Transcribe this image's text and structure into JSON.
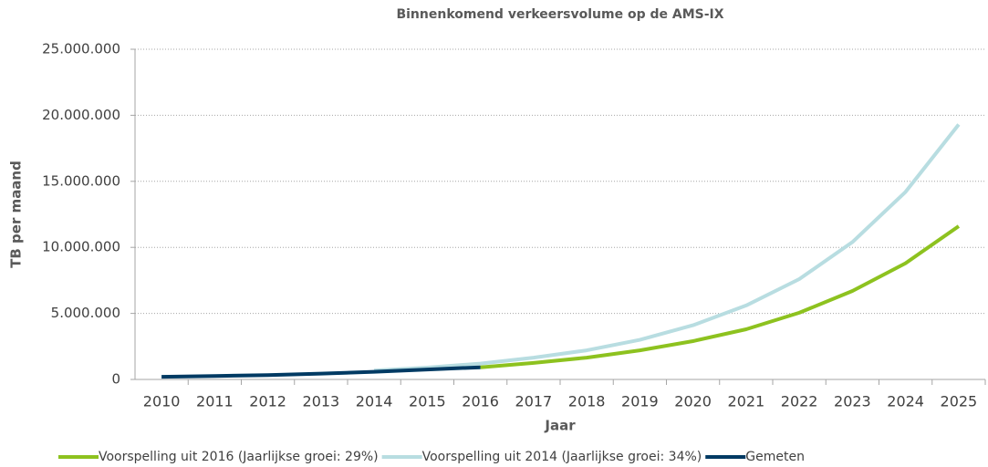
{
  "chart_data": {
    "type": "line",
    "title": "Binnenkomend verkeersvolume op de AMS-IX",
    "x_label": "Jaar",
    "y_label": "TB per maand",
    "categories": [
      "2010",
      "2011",
      "2012",
      "2013",
      "2014",
      "2015",
      "2016",
      "2017",
      "2018",
      "2019",
      "2020",
      "2021",
      "2022",
      "2023",
      "2024",
      "2025"
    ],
    "series": [
      {
        "name": "Voorspelling uit 2016 (Jaarlijkse groei: 29%)",
        "color": "#8dc21f",
        "values": [
          null,
          null,
          null,
          null,
          null,
          null,
          920000,
          1250000,
          1650000,
          2200000,
          2900000,
          3800000,
          5050000,
          6700000,
          8800000,
          11600000
        ]
      },
      {
        "name": "Voorspelling uit 2014 (Jaarlijkse groei: 34%)",
        "color": "#b8dde1",
        "values": [
          null,
          null,
          null,
          null,
          670000,
          900000,
          1200000,
          1650000,
          2200000,
          3000000,
          4100000,
          5600000,
          7600000,
          10400000,
          14200000,
          19300000
        ]
      },
      {
        "name": "Gemeten",
        "color": "#003a63",
        "values": [
          200000,
          260000,
          330000,
          440000,
          580000,
          750000,
          920000,
          null,
          null,
          null,
          null,
          null,
          null,
          null,
          null,
          null
        ]
      }
    ],
    "ylim": [
      0,
      25000000
    ],
    "yticks": [
      0,
      {
        "value": 5000000,
        "label": "5.000.000"
      },
      {
        "value": 10000000,
        "label": "10.000.000"
      },
      {
        "value": 15000000,
        "label": "15.000.000"
      },
      {
        "value": 20000000,
        "label": "20.000.000"
      },
      {
        "value": 25000000,
        "label": "25.000.000"
      }
    ],
    "grid": true
  }
}
